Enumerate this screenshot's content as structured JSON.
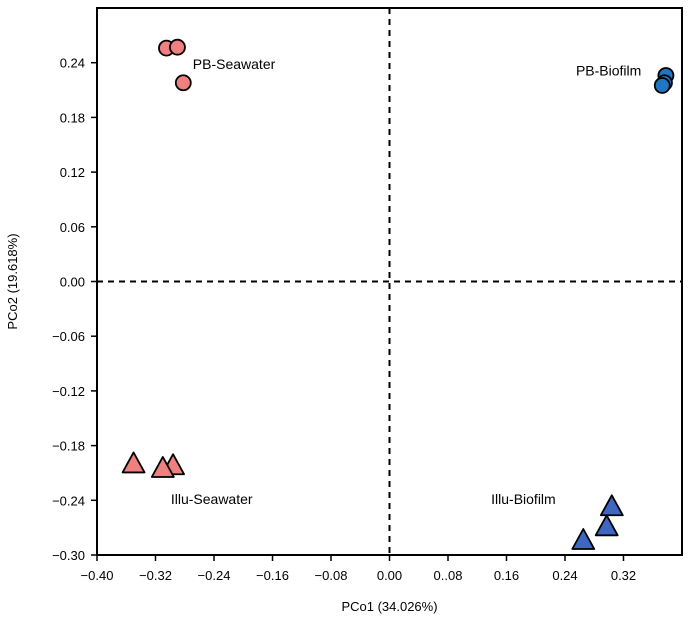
{
  "chart_data": {
    "type": "scatter",
    "title": "",
    "xlabel": "PCo1 (34.026%)",
    "ylabel": "PCo2 (19.618%)",
    "xlim": [
      -0.4,
      0.4
    ],
    "ylim": [
      -0.3,
      0.3
    ],
    "x_ticks": [
      {
        "value": -0.4,
        "label": "−0.40"
      },
      {
        "value": -0.32,
        "label": "−0.32"
      },
      {
        "value": -0.24,
        "label": "−0.24"
      },
      {
        "value": -0.16,
        "label": "−0.16"
      },
      {
        "value": -0.08,
        "label": "−0.08"
      },
      {
        "value": 0.0,
        "label": "0.00"
      },
      {
        "value": 0.08,
        "label": "0..08"
      },
      {
        "value": 0.16,
        "label": "0.16"
      },
      {
        "value": 0.24,
        "label": "0.24"
      },
      {
        "value": 0.32,
        "label": "0.32"
      }
    ],
    "y_ticks": [
      {
        "value": 0.24,
        "label": "0.24"
      },
      {
        "value": 0.18,
        "label": "0.18"
      },
      {
        "value": 0.12,
        "label": "0.12"
      },
      {
        "value": 0.06,
        "label": "0.06"
      },
      {
        "value": 0.0,
        "label": "0.00"
      },
      {
        "value": -0.06,
        "label": "−0.06"
      },
      {
        "value": -0.12,
        "label": "−0.12"
      },
      {
        "value": -0.18,
        "label": "−0.18"
      },
      {
        "value": -0.24,
        "label": "−0.24"
      },
      {
        "value": -0.3,
        "label": "−0.30"
      }
    ],
    "reference_lines": {
      "x": 0,
      "y": 0,
      "style": "dashed"
    },
    "grid": false,
    "legend": "none",
    "series": [
      {
        "name": "PB-Seawater",
        "marker": "circle",
        "color": "#f08080",
        "points": [
          [
            -0.305,
            0.256
          ],
          [
            -0.29,
            0.257
          ],
          [
            -0.282,
            0.218
          ]
        ]
      },
      {
        "name": "PB-Biofilm",
        "marker": "circle",
        "color": "#1f77c4",
        "points": [
          [
            0.378,
            0.226
          ],
          [
            0.376,
            0.218
          ],
          [
            0.373,
            0.215
          ]
        ]
      },
      {
        "name": "Illu-Seawater",
        "marker": "triangle",
        "color": "#f08080",
        "points": [
          [
            -0.35,
            -0.199
          ],
          [
            -0.296,
            -0.201
          ],
          [
            -0.31,
            -0.204
          ]
        ]
      },
      {
        "name": "Illu-Biofilm",
        "marker": "triangle",
        "color": "#3f66c0",
        "points": [
          [
            0.304,
            -0.246
          ],
          [
            0.297,
            -0.268
          ],
          [
            0.265,
            -0.283
          ]
        ]
      }
    ],
    "annotations": [
      {
        "text": "PB-Seawater",
        "x": -0.269,
        "y": 0.233
      },
      {
        "text": "PB-Biofilm",
        "x": 0.255,
        "y": 0.226
      },
      {
        "text": "Illu-Seawater",
        "x": -0.299,
        "y": -0.244
      },
      {
        "text": "Illu-Biofilm",
        "x": 0.139,
        "y": -0.244
      }
    ]
  }
}
